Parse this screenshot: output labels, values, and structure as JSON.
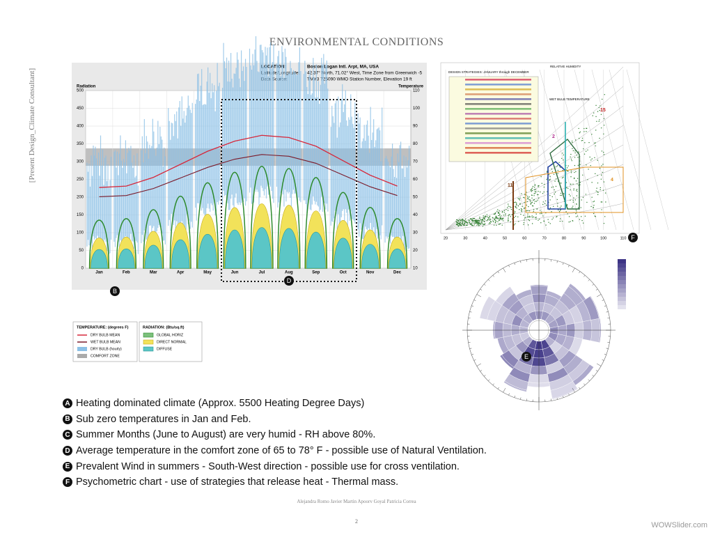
{
  "header": {
    "title": "ENVIRONMENTAL CONDITIONS",
    "side_label": "[Present Design_Climate Consultant]"
  },
  "climate_chart": {
    "location_labels": [
      "LOCATION:",
      "Latitude/Longitude:",
      "Data Source:"
    ],
    "location_values": [
      "Boston Logan Intl. Arpt, MA, USA",
      "42.37° North, 71.02° West, Time Zone from Greenwich -5",
      "TMY3    725090 WMO Station Number, Elevation 19 ft"
    ],
    "left_axis_label": "Radiation",
    "right_axis_label": "Temperature",
    "left_ticks": [
      "500",
      "450",
      "400",
      "350",
      "300",
      "250",
      "200",
      "150",
      "100",
      "50",
      "0"
    ],
    "right_ticks": [
      "110",
      "100",
      "90",
      "80",
      "70",
      "60",
      "50",
      "40",
      "30",
      "20",
      "10"
    ],
    "months": [
      "Jan",
      "Feb",
      "Mar",
      "Apr",
      "May",
      "Jun",
      "Jul",
      "Aug",
      "Sep",
      "Oct",
      "Nov",
      "Dec"
    ],
    "markers": [
      "B",
      "D"
    ]
  },
  "legend": {
    "temperature": {
      "title": "TEMPERATURE: (degrees F)",
      "items": [
        "DRY BULB MEAN",
        "WET BULB MEAN",
        "DRY BULB (hourly)",
        "COMFORT ZONE"
      ]
    },
    "radiation": {
      "title": "RADIATION: (Btu/sq.ft)",
      "items": [
        "GLOBAL HORIZ",
        "DIRECT NORMAL",
        "DIFFUSE"
      ]
    }
  },
  "psychrometric": {
    "heading": "DESIGN STRATEGIES: JANUARY through DECEMBER",
    "top_label": "RELATIVE HUMIDITY",
    "wet_bulb_label": "WET BULB TEMPERATURE",
    "x_ticks": [
      "20",
      "30",
      "40",
      "50",
      "60",
      "70",
      "80",
      "90",
      "100",
      "110"
    ],
    "zone_numbers": [
      "15",
      "11",
      "2",
      "4"
    ],
    "marker": "F"
  },
  "wind_rose": {
    "marker": "E"
  },
  "notes": [
    {
      "letter": "A",
      "text": "Heating dominated climate (Approx. 5500 Heating Degree Days)"
    },
    {
      "letter": "B",
      "text": "Sub zero temperatures in Jan and Feb."
    },
    {
      "letter": "C",
      "text": "Summer Months (June to August) are very humid - RH above 80%."
    },
    {
      "letter": "D",
      "text": "Average temperature in the comfort zone of 65 to 78° F - possible use of Natural Ventilation."
    },
    {
      "letter": "E",
      "text": "Prevalent Wind in summers - South-West direction - possible use for cross ventilation."
    },
    {
      "letter": "F",
      "text": "Psychometric chart -  use of strategies that release heat - Thermal mass."
    }
  ],
  "footer": {
    "authors": "Alejandra Romo  Javier Martin  Apoorv Goyal  Patricia Correa",
    "page": "2",
    "watermark": "WOWSlider.com"
  }
}
